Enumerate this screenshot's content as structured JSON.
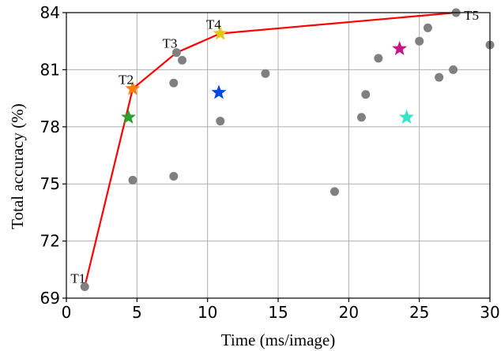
{
  "chart_data": {
    "type": "scatter",
    "title": "",
    "xlabel": "Time (ms/image)",
    "ylabel": "Total accuracy (%)",
    "xlim": [
      0,
      30
    ],
    "ylim": [
      69,
      84
    ],
    "xticks": [
      0,
      5,
      10,
      15,
      20,
      25,
      30
    ],
    "yticks": [
      69,
      72,
      75,
      78,
      81,
      84
    ],
    "grid": true,
    "scatter_color": "#808080",
    "scatter_points": [
      {
        "x": 1.3,
        "y": 69.6
      },
      {
        "x": 4.7,
        "y": 75.2
      },
      {
        "x": 7.6,
        "y": 75.4
      },
      {
        "x": 7.6,
        "y": 80.3
      },
      {
        "x": 7.8,
        "y": 81.9
      },
      {
        "x": 8.2,
        "y": 81.5
      },
      {
        "x": 10.9,
        "y": 78.3
      },
      {
        "x": 14.1,
        "y": 80.8
      },
      {
        "x": 19.0,
        "y": 74.6
      },
      {
        "x": 20.9,
        "y": 78.5
      },
      {
        "x": 21.2,
        "y": 79.7
      },
      {
        "x": 22.1,
        "y": 81.6
      },
      {
        "x": 25.0,
        "y": 82.5
      },
      {
        "x": 25.6,
        "y": 83.2
      },
      {
        "x": 26.4,
        "y": 80.6
      },
      {
        "x": 27.4,
        "y": 81.0
      },
      {
        "x": 27.6,
        "y": 84.0
      },
      {
        "x": 30.0,
        "y": 82.3
      }
    ],
    "frontier": {
      "color": "#ff0000",
      "points": [
        {
          "x": 1.3,
          "y": 69.6,
          "label": "T1"
        },
        {
          "x": 4.7,
          "y": 80.0,
          "label": "T2"
        },
        {
          "x": 7.8,
          "y": 81.9,
          "label": "T3"
        },
        {
          "x": 10.9,
          "y": 82.9,
          "label": "T4"
        },
        {
          "x": 27.6,
          "y": 84.0,
          "label": "T5"
        }
      ]
    },
    "stars": [
      {
        "x": 4.7,
        "y": 80.0,
        "color": "#ff7f0e"
      },
      {
        "x": 4.4,
        "y": 78.5,
        "color": "#2ca02c"
      },
      {
        "x": 10.9,
        "y": 82.9,
        "color": "#e6c619"
      },
      {
        "x": 10.8,
        "y": 79.8,
        "color": "#0047e6"
      },
      {
        "x": 23.6,
        "y": 82.1,
        "color": "#c71585"
      },
      {
        "x": 24.1,
        "y": 78.5,
        "color": "#33e6c8"
      }
    ]
  }
}
